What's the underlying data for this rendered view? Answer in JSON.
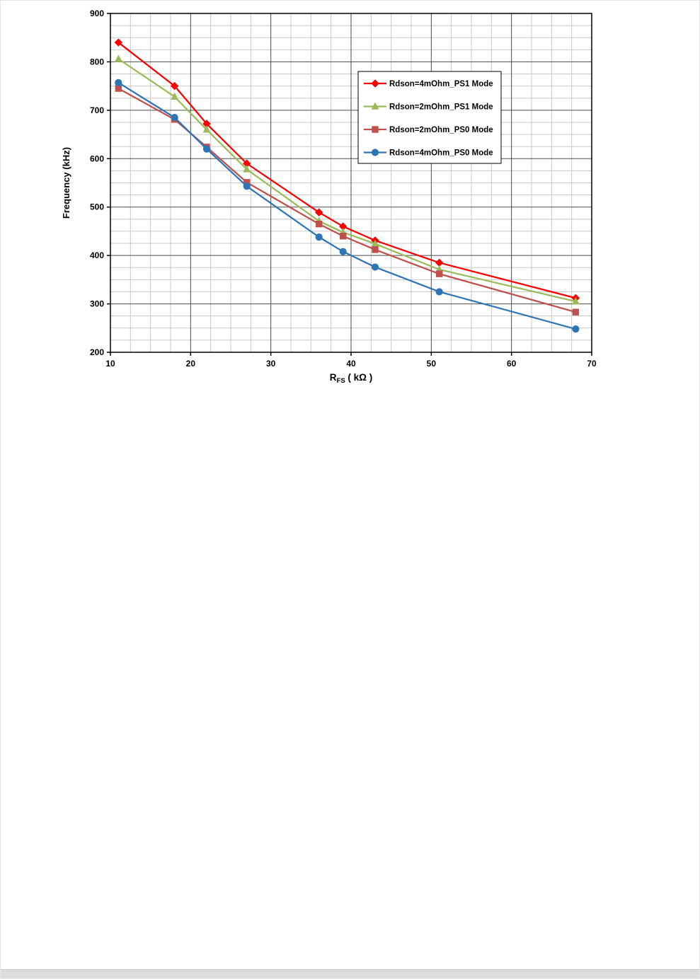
{
  "page": {
    "background": "#ffffff",
    "footer_bar_color": "#dcdcdc"
  },
  "chart_data": {
    "type": "line",
    "title": "",
    "ylabel": "Frequency (kHz)",
    "xlabel_main": "R",
    "xlabel_sub": "FS",
    "xlabel_rest": " ( kΩ )",
    "xlim": [
      10,
      70
    ],
    "ylim": [
      200,
      900
    ],
    "x_major_ticks": [
      10,
      20,
      30,
      40,
      50,
      60,
      70
    ],
    "y_major_ticks": [
      200,
      300,
      400,
      500,
      600,
      700,
      800,
      900
    ],
    "x_minor_step": 2.5,
    "y_minor_step": 25,
    "grid": {
      "major_color": "#4d4d4d",
      "minor_color": "#c8c8c8",
      "border_color": "#000000"
    },
    "legend": {
      "position": "top-right",
      "background": "#ffffff",
      "border_color": "#000000"
    },
    "x": [
      11,
      18,
      22,
      27,
      36,
      39,
      43,
      51,
      68
    ],
    "series": [
      {
        "name": "Rdson=4mOhm_PS1 Mode",
        "color": "#FF0000",
        "marker": "diamond",
        "values": [
          840,
          750,
          672,
          590,
          489,
          460,
          431,
          385,
          312
        ]
      },
      {
        "name": "Rdson=2mOhm_PS1 Mode",
        "color": "#9BBB59",
        "marker": "triangle",
        "values": [
          806,
          728,
          660,
          578,
          471,
          448,
          424,
          371,
          305
        ]
      },
      {
        "name": "Rdson=2mOhm_PS0 Mode",
        "color": "#C0504D",
        "marker": "square",
        "values": [
          745,
          681,
          624,
          551,
          465,
          440,
          412,
          362,
          283
        ]
      },
      {
        "name": "Rdson=4mOhm_PS0 Mode",
        "color": "#2E75B6",
        "marker": "circle",
        "values": [
          757,
          685,
          620,
          543,
          438,
          408,
          376,
          325,
          248
        ]
      }
    ]
  }
}
